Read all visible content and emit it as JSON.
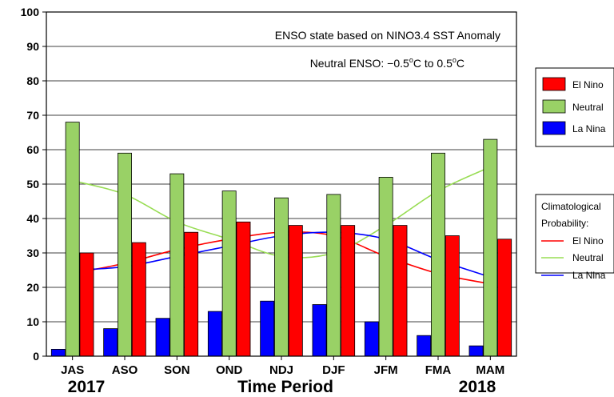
{
  "chart_data": {
    "type": "bar",
    "title": "",
    "xlabel": "Time Period",
    "ylabel": "",
    "ylim": [
      0,
      100
    ],
    "y_ticks": [
      0,
      10,
      20,
      30,
      40,
      50,
      60,
      70,
      80,
      90,
      100
    ],
    "grid": "horizontal",
    "categories": [
      "JAS",
      "ASO",
      "SON",
      "OND",
      "NDJ",
      "DJF",
      "JFM",
      "FMA",
      "MAM"
    ],
    "year_labels": {
      "start": "2017",
      "end": "2018"
    },
    "annotations": {
      "line1": "ENSO state based on NINO3.4 SST Anomaly",
      "line2_prefix": "Neutral ENSO: −0.5",
      "line2_mid": "C to 0.5",
      "line2_suffix": "C",
      "degree_symbol": "o"
    },
    "series": [
      {
        "name": "La Nina",
        "color": "#0000ff",
        "values": [
          2,
          8,
          11,
          13,
          16,
          15,
          10,
          6,
          3
        ]
      },
      {
        "name": "Neutral",
        "color": "#99d166",
        "values": [
          68,
          59,
          53,
          48,
          46,
          47,
          52,
          59,
          63
        ]
      },
      {
        "name": "El Nino",
        "color": "#ff0000",
        "values": [
          30,
          33,
          36,
          39,
          38,
          38,
          38,
          35,
          34
        ]
      }
    ],
    "climatology": {
      "title_line1": "Climatological",
      "title_line2": "Probability:",
      "series": [
        {
          "name": "El Nino",
          "color": "#ff0000",
          "values": [
            24,
            27,
            31,
            34,
            36,
            35,
            29,
            24,
            21
          ]
        },
        {
          "name": "Neutral",
          "color": "#99dd55",
          "values": [
            51,
            47,
            39,
            34,
            29,
            30,
            38,
            48,
            55
          ]
        },
        {
          "name": "La Nina",
          "color": "#0000ff",
          "values": [
            25,
            26,
            29,
            32,
            35,
            36,
            34,
            28,
            23
          ],
          "markers": true
        }
      ]
    },
    "legend_position": "right"
  }
}
